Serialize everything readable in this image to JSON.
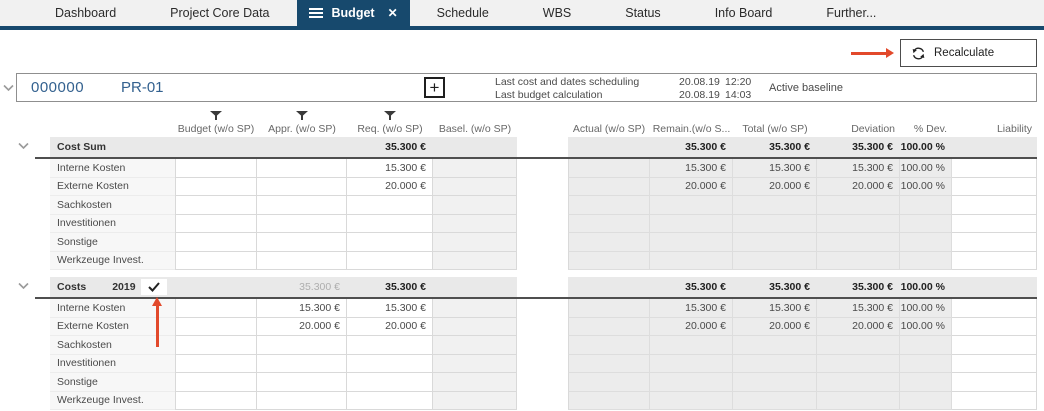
{
  "tabs": [
    {
      "label": "Dashboard",
      "active": false
    },
    {
      "label": "Project Core Data",
      "active": false
    },
    {
      "label": "Budget",
      "active": true
    },
    {
      "label": "Schedule",
      "active": false
    },
    {
      "label": "WBS",
      "active": false
    },
    {
      "label": "Status",
      "active": false
    },
    {
      "label": "Info Board",
      "active": false
    },
    {
      "label": "Further...",
      "active": false
    }
  ],
  "toolbar": {
    "recalculate_label": "Recalculate"
  },
  "project": {
    "code": "000000",
    "name": "PR-01",
    "info": [
      {
        "label": "Last cost and dates scheduling",
        "date": "20.08.19",
        "time": "12:20"
      },
      {
        "label": "Last budget calculation",
        "date": "20.08.19",
        "time": "14:03"
      }
    ],
    "baseline": "Active baseline"
  },
  "table": {
    "columns": [
      "Budget (w/o SP)",
      "Appr. (w/o SP)",
      "Req. (w/o SP)",
      "Basel. (w/o SP)",
      "Actual (w/o SP)",
      "Remain.(w/o S...",
      "Total (w/o SP)",
      "Deviation",
      "% Dev.",
      "Liability"
    ],
    "sections": [
      {
        "title": "Cost Sum",
        "year": "",
        "checked": false,
        "totals": {
          "budget": "",
          "appr": "",
          "req": "35.300 €",
          "basel": "",
          "actual": "",
          "remain": "35.300 €",
          "total": "35.300 €",
          "deviation": "35.300 €",
          "pdev": "100.00 %",
          "liability": ""
        },
        "rows": [
          {
            "label": "Interne Kosten",
            "req": "15.300 €",
            "remain": "15.300 €",
            "total": "15.300 €",
            "deviation": "15.300 €",
            "pdev": "100.00 %"
          },
          {
            "label": "Externe Kosten",
            "req": "20.000 €",
            "remain": "20.000 €",
            "total": "20.000 €",
            "deviation": "20.000 €",
            "pdev": "100.00 %"
          },
          {
            "label": "Sachkosten"
          },
          {
            "label": "Investitionen"
          },
          {
            "label": "Sonstige"
          },
          {
            "label": "Werkzeuge Invest."
          }
        ]
      },
      {
        "title": "Costs",
        "year": "2019",
        "checked": true,
        "totals": {
          "budget": "",
          "appr": "35.300 €",
          "req": "35.300 €",
          "basel": "",
          "actual": "",
          "remain": "35.300 €",
          "total": "35.300 €",
          "deviation": "35.300 €",
          "pdev": "100.00 %",
          "liability": ""
        },
        "rows": [
          {
            "label": "Interne Kosten",
            "appr": "15.300 €",
            "req": "15.300 €",
            "remain": "15.300 €",
            "total": "15.300 €",
            "deviation": "15.300 €",
            "pdev": "100.00 %"
          },
          {
            "label": "Externe Kosten",
            "appr": "20.000 €",
            "req": "20.000 €",
            "remain": "20.000 €",
            "total": "20.000 €",
            "deviation": "20.000 €",
            "pdev": "100.00 %"
          },
          {
            "label": "Sachkosten"
          },
          {
            "label": "Investitionen"
          },
          {
            "label": "Sonstige"
          },
          {
            "label": "Werkzeuge Invest."
          }
        ]
      }
    ]
  },
  "icons": {
    "hamburger": "menu-lines",
    "close": "x",
    "refresh": "circular-arrows",
    "filter": "funnel",
    "chevron": "chevron-down",
    "plus": "plus",
    "check": "checkmark"
  },
  "colors": {
    "accent_navy": "#17496d",
    "annotation_orange": "#e2492b",
    "section_bg": "#e9e9e9",
    "readonly_bg": "#ececec",
    "link_blue": "#33618f"
  }
}
